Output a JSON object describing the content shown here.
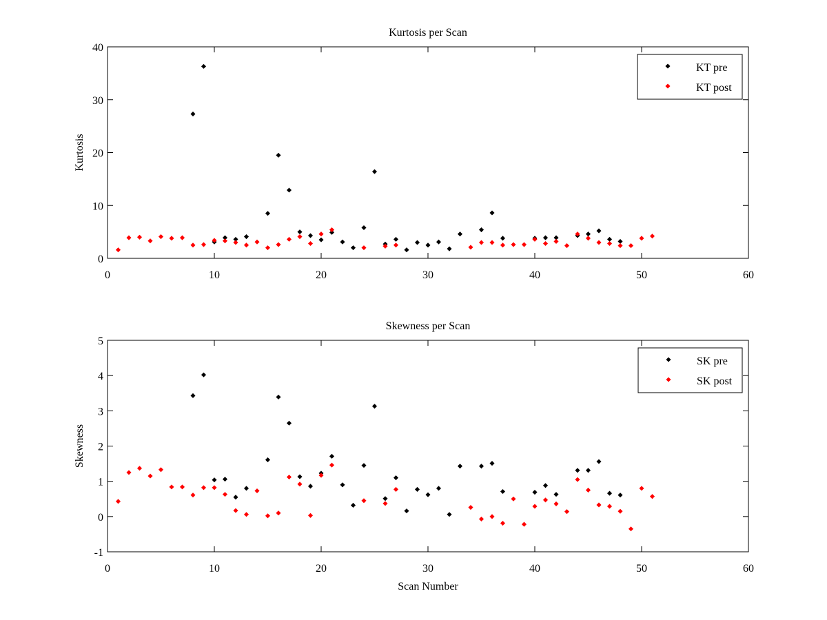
{
  "chart_data": [
    {
      "type": "scatter",
      "title": "Kurtosis per Scan",
      "xlabel": "",
      "ylabel": "Kurtosis",
      "xlim": [
        0,
        60
      ],
      "ylim": [
        0,
        40
      ],
      "xticks": [
        0,
        10,
        20,
        30,
        40,
        50,
        60
      ],
      "yticks": [
        0,
        10,
        20,
        30,
        40
      ],
      "grid": false,
      "legend": "top-right",
      "series": [
        {
          "name": "KT pre",
          "color": "#000000",
          "x": [
            8,
            9,
            10,
            11,
            12,
            13,
            15,
            16,
            17,
            18,
            19,
            20,
            21,
            22,
            23,
            24,
            25,
            26,
            27,
            28,
            29,
            30,
            31,
            32,
            33,
            35,
            36,
            37,
            40,
            41,
            42,
            44,
            45,
            46,
            47,
            48
          ],
          "y": [
            27.3,
            36.3,
            3.1,
            3.9,
            3.6,
            4.1,
            8.5,
            19.5,
            12.9,
            5.0,
            4.3,
            3.5,
            4.9,
            3.1,
            2.0,
            5.8,
            16.4,
            2.7,
            3.6,
            1.6,
            3.0,
            2.5,
            3.1,
            1.8,
            4.6,
            5.4,
            8.6,
            3.8,
            3.8,
            3.9,
            3.9,
            4.3,
            4.6,
            5.2,
            3.6,
            3.2
          ]
        },
        {
          "name": "KT post",
          "color": "#ff0000",
          "x": [
            1,
            2,
            3,
            4,
            5,
            6,
            7,
            8,
            9,
            10,
            11,
            12,
            13,
            14,
            15,
            16,
            17,
            18,
            19,
            20,
            21,
            24,
            26,
            27,
            34,
            35,
            36,
            37,
            38,
            39,
            40,
            41,
            42,
            43,
            44,
            45,
            46,
            47,
            48,
            49,
            50,
            51
          ],
          "y": [
            1.6,
            3.9,
            4.0,
            3.3,
            4.1,
            3.8,
            3.9,
            2.5,
            2.6,
            3.4,
            3.3,
            3.0,
            2.5,
            3.1,
            2.0,
            2.6,
            3.6,
            4.1,
            2.8,
            4.6,
            5.4,
            2.0,
            2.3,
            2.5,
            2.1,
            3.0,
            3.0,
            2.5,
            2.6,
            2.6,
            3.6,
            2.8,
            3.2,
            2.4,
            4.6,
            3.8,
            3.0,
            2.8,
            2.4,
            2.4,
            3.8,
            4.2
          ]
        }
      ]
    },
    {
      "type": "scatter",
      "title": "Skewness per Scan",
      "xlabel": "Scan Number",
      "ylabel": "Skewness",
      "xlim": [
        0,
        60
      ],
      "ylim": [
        -1,
        5
      ],
      "xticks": [
        0,
        10,
        20,
        30,
        40,
        50,
        60
      ],
      "yticks": [
        -1,
        0,
        1,
        2,
        3,
        4,
        5
      ],
      "grid": false,
      "legend": "top-right",
      "series": [
        {
          "name": "SK pre",
          "color": "#000000",
          "x": [
            8,
            9,
            10,
            11,
            12,
            13,
            15,
            16,
            17,
            18,
            19,
            20,
            21,
            22,
            23,
            24,
            25,
            26,
            27,
            28,
            29,
            30,
            31,
            32,
            33,
            35,
            36,
            37,
            40,
            41,
            42,
            44,
            45,
            46,
            47,
            48
          ],
          "y": [
            3.43,
            4.02,
            1.04,
            1.06,
            0.55,
            0.8,
            1.61,
            3.39,
            2.65,
            1.13,
            0.86,
            1.23,
            1.71,
            0.9,
            0.32,
            1.45,
            3.13,
            0.51,
            1.1,
            0.16,
            0.77,
            0.62,
            0.8,
            0.06,
            1.43,
            1.43,
            1.51,
            0.71,
            0.69,
            0.88,
            0.63,
            1.31,
            1.31,
            1.56,
            0.66,
            0.61
          ]
        },
        {
          "name": "SK post",
          "color": "#ff0000",
          "x": [
            1,
            2,
            3,
            4,
            5,
            6,
            7,
            8,
            9,
            10,
            11,
            12,
            13,
            14,
            15,
            16,
            17,
            18,
            19,
            20,
            21,
            24,
            26,
            27,
            34,
            35,
            36,
            37,
            38,
            39,
            40,
            41,
            42,
            43,
            44,
            45,
            46,
            47,
            48,
            49,
            50,
            51
          ],
          "y": [
            0.43,
            1.25,
            1.37,
            1.15,
            1.33,
            0.84,
            0.84,
            0.61,
            0.82,
            0.82,
            0.63,
            0.17,
            0.06,
            0.73,
            0.02,
            0.1,
            1.12,
            0.92,
            0.03,
            1.17,
            1.46,
            0.45,
            0.37,
            0.77,
            0.26,
            -0.07,
            0.0,
            -0.19,
            0.5,
            -0.22,
            0.29,
            0.47,
            0.36,
            0.14,
            1.05,
            0.75,
            0.33,
            0.29,
            0.15,
            -0.35,
            0.8,
            0.57
          ]
        }
      ]
    }
  ]
}
